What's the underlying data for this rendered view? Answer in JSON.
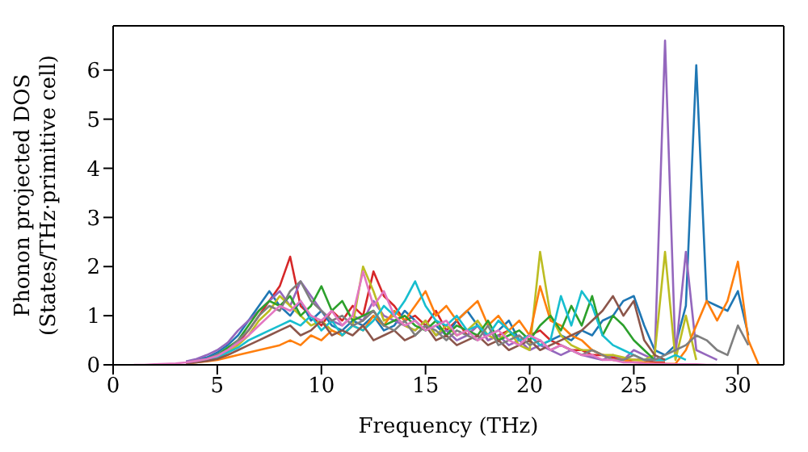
{
  "chart_data": {
    "type": "line",
    "xlabel": "Frequency (THz)",
    "ylabel": "Phonon projected DOS\n(States/THz·primitive cell)",
    "xlim": [
      0,
      32.2
    ],
    "xticks": [
      0,
      5,
      10,
      15,
      20,
      25,
      30
    ],
    "ylim": [
      0,
      6.9
    ],
    "yticks": [
      0,
      1,
      2,
      3,
      4,
      5,
      6
    ],
    "grid": false,
    "legend": false,
    "marker": "none",
    "line_style": "solid",
    "x": [
      1,
      1.5,
      2,
      2.5,
      3,
      3.5,
      4,
      4.5,
      5,
      5.5,
      6,
      6.5,
      7,
      7.5,
      8,
      8.5,
      9,
      9.5,
      10,
      10.5,
      11,
      11.5,
      12,
      12.5,
      13,
      13.5,
      14,
      14.5,
      15,
      15.5,
      16,
      16.5,
      17,
      17.5,
      18,
      18.5,
      19,
      19.5,
      20,
      20.5,
      21,
      21.5,
      22,
      22.5,
      23,
      23.5,
      24,
      24.5,
      25,
      25.5,
      26,
      26.5,
      27,
      27.5,
      28,
      28.5,
      29,
      29.5,
      30,
      30.5,
      31
    ],
    "series": [
      {
        "color": "#d62728",
        "values": [
          null,
          null,
          null,
          null,
          null,
          0.05,
          0.08,
          0.12,
          0.18,
          0.3,
          0.45,
          0.7,
          1.0,
          1.3,
          1.6,
          2.2,
          1.2,
          1.0,
          0.8,
          1.1,
          0.9,
          1.2,
          1.0,
          1.9,
          1.4,
          1.2,
          0.9,
          1.0,
          0.8,
          1.1,
          0.7,
          0.9,
          0.6,
          0.8,
          0.5,
          0.6,
          0.7,
          0.5,
          0.6,
          0.7,
          0.5,
          0.4,
          0.3,
          0.3,
          0.2,
          0.2,
          0.15,
          0.1,
          0.1,
          0.1,
          0.05,
          0.05,
          null,
          null,
          null,
          null,
          null,
          null,
          null,
          null,
          null
        ]
      },
      {
        "color": "#1f77b4",
        "values": [
          null,
          null,
          null,
          null,
          null,
          0.06,
          0.1,
          0.15,
          0.25,
          0.4,
          0.6,
          0.9,
          1.2,
          1.5,
          1.2,
          1.0,
          1.3,
          0.9,
          1.1,
          0.8,
          0.7,
          0.9,
          0.8,
          1.0,
          0.7,
          0.8,
          1.1,
          0.9,
          0.7,
          0.8,
          0.6,
          0.9,
          1.1,
          0.8,
          0.6,
          0.7,
          0.9,
          0.5,
          0.6,
          0.4,
          0.5,
          0.6,
          0.5,
          0.7,
          0.6,
          0.9,
          1.0,
          1.3,
          1.4,
          0.8,
          0.3,
          0.2,
          0.4,
          1.2,
          6.1,
          1.3,
          1.2,
          1.1,
          1.5,
          0.6,
          null
        ]
      },
      {
        "color": "#9467bd",
        "values": [
          null,
          null,
          null,
          null,
          null,
          0.07,
          0.12,
          0.2,
          0.3,
          0.45,
          0.7,
          0.9,
          1.1,
          1.3,
          1.5,
          1.2,
          1.7,
          1.4,
          1.1,
          0.9,
          0.8,
          1.0,
          0.9,
          1.3,
          1.0,
          0.9,
          0.8,
          0.7,
          0.9,
          0.6,
          0.7,
          0.5,
          0.6,
          0.8,
          0.5,
          0.6,
          0.4,
          0.5,
          0.3,
          0.4,
          0.3,
          0.2,
          0.3,
          0.2,
          0.15,
          0.1,
          0.2,
          0.1,
          0.3,
          0.2,
          0.1,
          6.6,
          0.2,
          2.3,
          0.3,
          0.2,
          0.1,
          null,
          null,
          null,
          null
        ]
      },
      {
        "color": "#bcbd22",
        "values": [
          null,
          null,
          null,
          null,
          null,
          null,
          null,
          null,
          0.15,
          0.25,
          0.4,
          0.6,
          0.9,
          1.1,
          1.4,
          1.2,
          1.0,
          0.8,
          0.9,
          0.7,
          0.6,
          0.8,
          2.0,
          1.5,
          0.9,
          1.0,
          0.8,
          0.7,
          0.9,
          0.6,
          0.8,
          0.6,
          0.7,
          0.9,
          0.6,
          0.5,
          0.7,
          0.4,
          0.3,
          2.3,
          1.0,
          0.6,
          0.4,
          0.3,
          0.3,
          0.2,
          0.2,
          0.15,
          0.1,
          0.1,
          0.2,
          2.3,
          0.1,
          1.0,
          0.1,
          null,
          null,
          null,
          null,
          null,
          null
        ]
      },
      {
        "color": "#ff7f0e",
        "values": [
          null,
          null,
          null,
          null,
          null,
          0.03,
          0.05,
          0.07,
          0.1,
          0.15,
          0.2,
          0.25,
          0.3,
          0.35,
          0.4,
          0.5,
          0.4,
          0.6,
          0.5,
          0.7,
          0.6,
          0.8,
          0.7,
          1.0,
          0.8,
          1.1,
          0.9,
          1.2,
          1.5,
          1.0,
          1.2,
          0.9,
          1.1,
          1.3,
          0.8,
          1.0,
          0.7,
          0.9,
          0.6,
          1.6,
          0.9,
          0.8,
          0.6,
          0.5,
          0.3,
          0.2,
          0.1,
          0.1,
          0.05,
          0.05,
          0.03,
          0.02,
          0.02,
          0.3,
          0.8,
          1.3,
          0.9,
          1.3,
          2.1,
          0.5,
          0
        ]
      },
      {
        "color": "#2ca02c",
        "values": [
          null,
          null,
          null,
          null,
          null,
          null,
          null,
          0.12,
          0.2,
          0.35,
          0.5,
          0.8,
          1.1,
          1.3,
          1.2,
          1.4,
          1.0,
          1.2,
          1.6,
          1.1,
          1.3,
          0.9,
          1.0,
          1.1,
          0.8,
          0.9,
          1.0,
          0.8,
          0.7,
          0.9,
          0.6,
          0.8,
          0.7,
          0.6,
          0.9,
          0.5,
          0.6,
          0.7,
          0.5,
          0.8,
          1.0,
          0.7,
          1.2,
          0.8,
          1.4,
          0.6,
          1.0,
          0.8,
          0.5,
          0.3,
          0.1,
          0.1,
          null,
          null,
          null,
          null,
          null,
          null,
          null,
          null,
          null
        ]
      },
      {
        "color": "#17becf",
        "values": [
          null,
          null,
          null,
          null,
          null,
          null,
          0.06,
          0.1,
          0.15,
          0.25,
          0.35,
          0.5,
          0.6,
          0.7,
          0.8,
          0.9,
          0.8,
          1.0,
          0.7,
          0.9,
          0.6,
          0.8,
          0.7,
          0.9,
          1.2,
          1.0,
          1.3,
          1.7,
          1.2,
          0.9,
          0.8,
          1.0,
          0.7,
          0.8,
          0.6,
          0.9,
          0.7,
          0.5,
          0.6,
          0.4,
          0.5,
          1.4,
          0.8,
          1.5,
          1.2,
          0.6,
          0.4,
          0.3,
          0.2,
          0.1,
          0.1,
          0.1,
          0.2,
          0.1,
          null,
          null,
          null,
          null,
          null,
          null,
          null
        ]
      },
      {
        "color": "#8c564b",
        "values": [
          null,
          null,
          null,
          null,
          null,
          0.03,
          0.05,
          0.08,
          0.12,
          0.2,
          0.3,
          0.4,
          0.5,
          0.6,
          0.7,
          0.8,
          0.6,
          0.7,
          0.9,
          0.6,
          0.7,
          0.6,
          0.8,
          0.5,
          0.6,
          0.7,
          0.5,
          0.6,
          0.8,
          0.5,
          0.6,
          0.4,
          0.5,
          0.6,
          0.4,
          0.5,
          0.3,
          0.4,
          0.5,
          0.3,
          0.4,
          0.5,
          0.6,
          0.7,
          0.9,
          1.1,
          1.4,
          1.0,
          1.3,
          0.5,
          0.2,
          0.1,
          null,
          null,
          null,
          null,
          null,
          null,
          null,
          null,
          null
        ]
      },
      {
        "color": "#7f7f7f",
        "values": [
          null,
          null,
          null,
          null,
          null,
          0.05,
          0.08,
          0.12,
          0.2,
          0.3,
          0.5,
          0.7,
          1.0,
          1.2,
          1.1,
          1.5,
          1.7,
          1.3,
          1.1,
          0.9,
          1.0,
          0.8,
          0.9,
          1.1,
          0.8,
          0.7,
          0.9,
          0.6,
          0.8,
          0.7,
          0.5,
          0.7,
          0.6,
          0.5,
          0.8,
          0.4,
          0.5,
          0.6,
          0.4,
          0.5,
          0.3,
          0.4,
          0.3,
          0.2,
          0.3,
          0.2,
          0.1,
          0.1,
          0.2,
          0.1,
          0.1,
          0.2,
          0.3,
          0.4,
          0.6,
          0.5,
          0.3,
          0.2,
          0.8,
          0.4,
          null
        ]
      },
      {
        "color": "#e377c2",
        "values": [
          0,
          0,
          0.01,
          0.02,
          0.03,
          0.05,
          0.08,
          0.12,
          0.18,
          0.3,
          0.45,
          0.6,
          0.8,
          1.0,
          1.2,
          1.1,
          1.3,
          1.0,
          0.9,
          1.1,
          0.8,
          1.0,
          1.9,
          1.2,
          1.5,
          1.0,
          0.8,
          0.9,
          0.7,
          0.8,
          0.9,
          0.6,
          0.7,
          0.5,
          0.6,
          0.7,
          0.5,
          0.4,
          0.6,
          0.5,
          0.3,
          0.4,
          0.3,
          0.2,
          0.2,
          0.1,
          0.1,
          0.05,
          0.05,
          0.03,
          0.02,
          0.02,
          0.01,
          0.01,
          0.01,
          0,
          0,
          null,
          null,
          null,
          null
        ]
      }
    ]
  }
}
